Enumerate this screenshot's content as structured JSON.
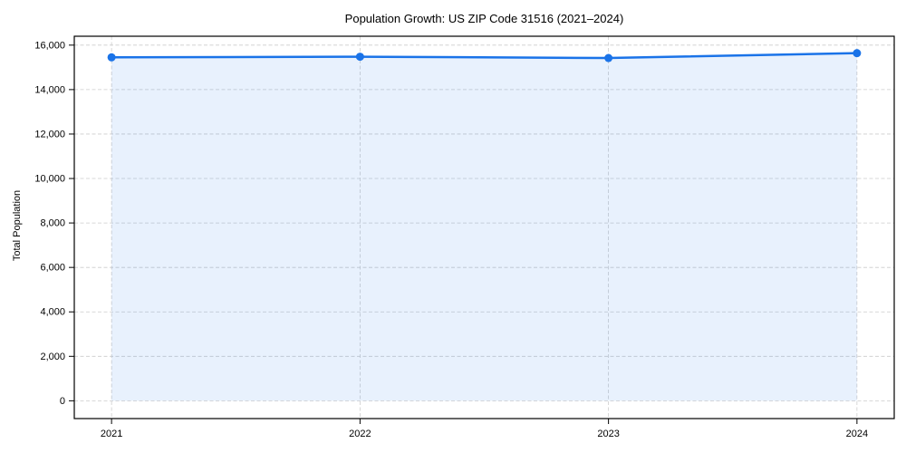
{
  "chart_data": {
    "type": "line",
    "title": "Population Growth: US ZIP Code 31516 (2021–2024)",
    "xlabel": "",
    "ylabel": "Total Population",
    "x": [
      2021,
      2022,
      2023,
      2024
    ],
    "xtick_labels": [
      "2021",
      "2022",
      "2023",
      "2024"
    ],
    "series": [
      {
        "name": "Total Population",
        "values": [
          15450,
          15480,
          15420,
          15640
        ]
      }
    ],
    "yticks": [
      0,
      2000,
      4000,
      6000,
      8000,
      10000,
      12000,
      14000,
      16000
    ],
    "ytick_labels": [
      "0",
      "2,000",
      "4,000",
      "6,000",
      "8,000",
      "10,000",
      "12,000",
      "14,000",
      "16,000"
    ],
    "xlim": [
      2020.85,
      2024.15
    ],
    "ylim": [
      -800,
      16400
    ],
    "grid": true,
    "grid_linestyle": "dashed",
    "legend": false,
    "marker": "circle",
    "fill_between": "line-to-zero",
    "style": {
      "line_color": "#1a73e8",
      "marker_color": "#1a73e8",
      "fill_color": "#1a73e8",
      "fill_opacity": 0.1,
      "grid_color": "#cccccc",
      "spine_color": "#000000",
      "text_color": "#000000",
      "background": "#ffffff"
    }
  }
}
